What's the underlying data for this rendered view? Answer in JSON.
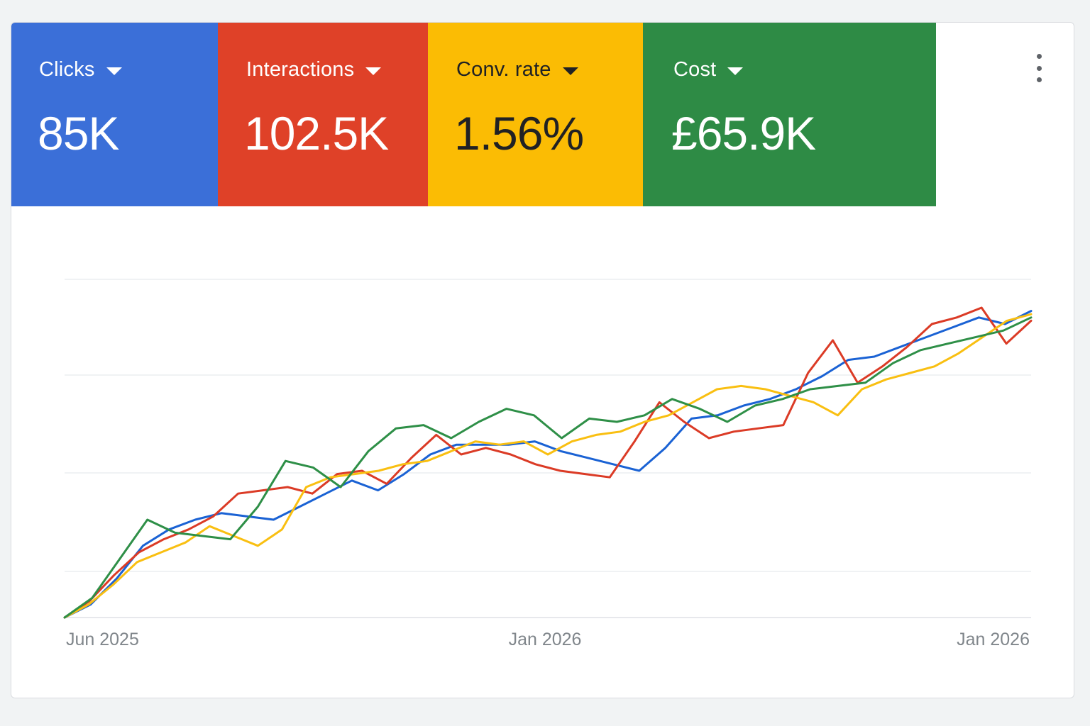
{
  "scorecards": [
    {
      "label": "Clicks",
      "value": "85K",
      "bg": "#3b6fd8",
      "fg": "#ffffff"
    },
    {
      "label": "Interactions",
      "value": "102.5K",
      "bg": "#df4128",
      "fg": "#ffffff"
    },
    {
      "label": "Conv. rate",
      "value": "1.56%",
      "bg": "#fbbc04",
      "fg": "#202124"
    },
    {
      "label": "Cost",
      "value": "£65.9K",
      "bg": "#2e8b45",
      "fg": "#ffffff"
    }
  ],
  "menu": {
    "icon": "more-vert-icon"
  },
  "chart_data": {
    "type": "line",
    "x_tick_labels": [
      "Jun 2025",
      "Jan 2026",
      "Jan 2026"
    ],
    "grid": true,
    "y_axis_labels_shown": false,
    "legend": "none",
    "series": [
      {
        "color": "#1a62d4",
        "values": [
          0,
          4,
          12,
          22,
          27,
          30,
          32,
          31,
          30,
          34,
          38,
          42,
          39,
          44,
          50,
          53,
          53,
          53,
          54,
          51,
          49,
          47,
          45,
          52,
          61,
          62,
          65,
          67,
          70,
          74,
          79,
          80,
          83,
          86,
          89,
          92,
          90,
          94
        ]
      },
      {
        "color": "#db3b26",
        "values": [
          0,
          5,
          13,
          20,
          24,
          27,
          31,
          38,
          39,
          40,
          38,
          44,
          45,
          41,
          49,
          56,
          50,
          52,
          50,
          47,
          45,
          44,
          43,
          54,
          66,
          60,
          55,
          57,
          58,
          59,
          75,
          85,
          72,
          77,
          83,
          90,
          92,
          95,
          84,
          91
        ]
      },
      {
        "color": "#f9bf11",
        "values": [
          0,
          4,
          10,
          17,
          20,
          23,
          28,
          25,
          22,
          27,
          40,
          43,
          44,
          45,
          47,
          48,
          51,
          54,
          53,
          54,
          50,
          54,
          56,
          57,
          60,
          62,
          66,
          70,
          71,
          70,
          68,
          66,
          62,
          70,
          73,
          75,
          77,
          81,
          86,
          91,
          93
        ]
      },
      {
        "color": "#2e8f47",
        "values": [
          0,
          6,
          18,
          30,
          26,
          25,
          24,
          34,
          48,
          46,
          40,
          51,
          58,
          59,
          55,
          60,
          64,
          62,
          55,
          61,
          60,
          62,
          67,
          64,
          60,
          65,
          67,
          70,
          71,
          72,
          78,
          82,
          84,
          86,
          88,
          92
        ]
      }
    ]
  }
}
